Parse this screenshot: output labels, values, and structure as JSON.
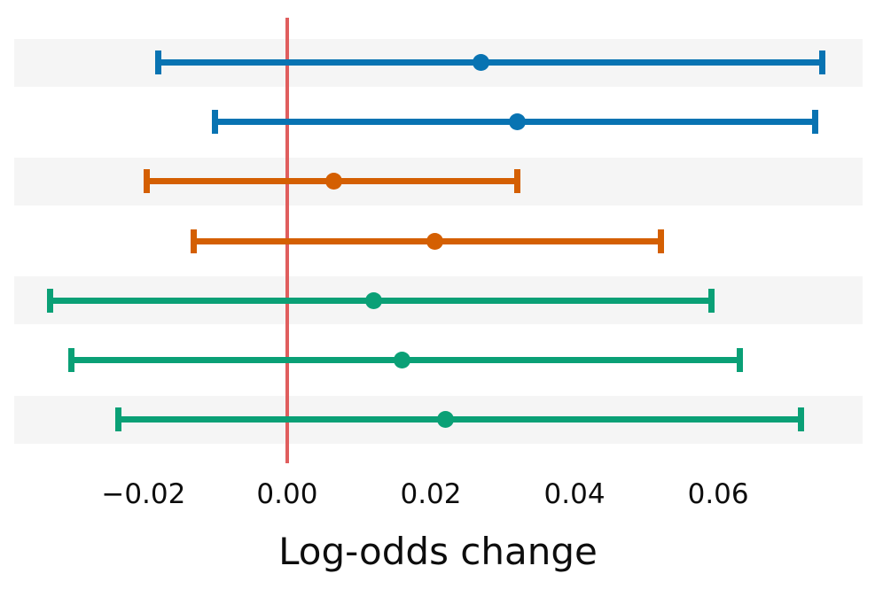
{
  "figure": {
    "background_color": "#ffffff",
    "row_band_color": "#f5f5f5",
    "text_color": "#0d0d0d"
  },
  "chart_data": {
    "type": "scatter",
    "subtype": "horizontal-errorbar-forest-plot",
    "title": "",
    "xlabel": "Log-odds change",
    "ylabel": "",
    "xlim": [
      -0.038,
      0.0801
    ],
    "x_ticks": [
      -0.02,
      0.0,
      0.02,
      0.04,
      0.06
    ],
    "x_tick_labels": [
      "−0.02",
      "0.00",
      "0.02",
      "0.04",
      "0.06"
    ],
    "grid": false,
    "legend": "none",
    "reference_line": {
      "x": 0.0,
      "color": "#e05e5e"
    },
    "rows": [
      {
        "row": 1,
        "series_color_name": "blue",
        "color": "#0873b2",
        "center": 0.027,
        "ci_low": -0.018,
        "ci_high": 0.0745
      },
      {
        "row": 2,
        "series_color_name": "blue",
        "color": "#0873b2",
        "center": 0.032,
        "ci_low": -0.01,
        "ci_high": 0.0735
      },
      {
        "row": 3,
        "series_color_name": "orange",
        "color": "#d45f02",
        "center": 0.0065,
        "ci_low": -0.0195,
        "ci_high": 0.032
      },
      {
        "row": 4,
        "series_color_name": "orange",
        "color": "#d45f02",
        "center": 0.0205,
        "ci_low": -0.013,
        "ci_high": 0.052
      },
      {
        "row": 5,
        "series_color_name": "green",
        "color": "#0aa076",
        "center": 0.012,
        "ci_low": -0.033,
        "ci_high": 0.059
      },
      {
        "row": 6,
        "series_color_name": "green",
        "color": "#0aa076",
        "center": 0.016,
        "ci_low": -0.03,
        "ci_high": 0.063
      },
      {
        "row": 7,
        "series_color_name": "green",
        "color": "#0aa076",
        "center": 0.022,
        "ci_low": -0.0235,
        "ci_high": 0.0715
      }
    ]
  }
}
